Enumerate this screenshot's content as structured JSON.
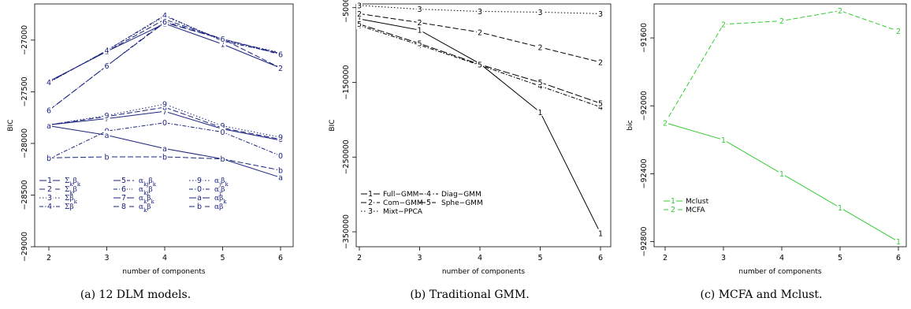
{
  "chart_data": [
    {
      "type": "line",
      "caption": "(a) 12 DLM models.",
      "xlabel": "number of components",
      "ylabel": "BIC",
      "x": [
        2,
        3,
        4,
        5,
        6
      ],
      "ylim": [
        -29000,
        -26650
      ],
      "yticks": [
        -29000,
        -28500,
        -28000,
        -27500,
        -27000
      ],
      "color": "#1a237e",
      "legend_columns": [
        [
          "Σ_kβ_k",
          "Σ_kβ",
          "Σβ_k",
          "Σβ"
        ],
        [
          "α_kjβ_k",
          "α_kjβ",
          "α_kβ_k",
          "α_kβ"
        ],
        [
          "α_jβ_k",
          "α_jβ",
          "αβ_k",
          "αβ"
        ]
      ],
      "series": [
        {
          "name": "Σ_kβ_k",
          "label": "1",
          "values": [
            -27400,
            -27110,
            -26840,
            -27040,
            -27270
          ]
        },
        {
          "name": "Σ_kβ",
          "label": "2",
          "values": [
            -27400,
            -27110,
            -26800,
            -26990,
            -27270
          ]
        },
        {
          "name": "Σβ_k",
          "label": "3",
          "values": [
            -27410,
            -27100,
            -26770,
            -27000,
            -27120
          ]
        },
        {
          "name": "Σβ",
          "label": "4",
          "values": [
            -27410,
            -27100,
            -26760,
            -27010,
            -27130
          ]
        },
        {
          "name": "α_kjβ_k",
          "label": "5",
          "values": [
            -27680,
            -27250,
            -26830,
            -26990,
            -27130
          ]
        },
        {
          "name": "α_kjβ",
          "label": "6",
          "values": [
            -27680,
            -27250,
            -26820,
            -26990,
            -27140
          ]
        },
        {
          "name": "α_kβ_k",
          "label": "7",
          "values": [
            -27820,
            -27760,
            -27690,
            -27860,
            -27970
          ]
        },
        {
          "name": "α_kβ",
          "label": "8",
          "values": [
            -27820,
            -27740,
            -27650,
            -27850,
            -27960
          ]
        },
        {
          "name": "α_jβ_k",
          "label": "9",
          "values": [
            -27820,
            -27730,
            -27620,
            -27830,
            -27940
          ]
        },
        {
          "name": "α_jβ",
          "label": "0",
          "values": [
            -28150,
            -27880,
            -27800,
            -27890,
            -28120
          ]
        },
        {
          "name": "αβ_k",
          "label": "a",
          "values": [
            -27830,
            -27920,
            -28050,
            -28150,
            -28330
          ]
        },
        {
          "name": "αβ",
          "label": "b",
          "values": [
            -28140,
            -28130,
            -28130,
            -28150,
            -28260
          ]
        }
      ]
    },
    {
      "type": "line",
      "caption": "(b) Traditional GMM.",
      "xlabel": "number of components",
      "ylabel": "BIC",
      "x": [
        2,
        3,
        4,
        5,
        6
      ],
      "ylim": [
        -370000,
        -45000
      ],
      "yticks": [
        -350000,
        -250000,
        -150000,
        -50000
      ],
      "color": "#000000",
      "legend": [
        "Full−GMM",
        "Com−GMM",
        "Mixt−PPCA",
        "Diag−GMM",
        "Sphe−GMM"
      ],
      "series": [
        {
          "name": "Full−GMM",
          "label": "1",
          "values": [
            -65000,
            -80000,
            -125000,
            -190000,
            -352000
          ]
        },
        {
          "name": "Com−GMM",
          "label": "2",
          "values": [
            -58000,
            -70000,
            -83000,
            -103000,
            -123000
          ]
        },
        {
          "name": "Mixt−PPCA",
          "label": "3",
          "values": [
            -47000,
            -52000,
            -55000,
            -56000,
            -58000
          ]
        },
        {
          "name": "Diag−GMM",
          "label": "4",
          "values": [
            -74000,
            -100000,
            -127000,
            -155000,
            -183000
          ]
        },
        {
          "name": "Sphe−GMM",
          "label": "5",
          "values": [
            -72000,
            -98000,
            -126000,
            -150000,
            -178000
          ]
        }
      ]
    },
    {
      "type": "line",
      "caption": "(c) MCFA and Mclust.",
      "xlabel": "number of components",
      "ylabel": "bic",
      "x": [
        2,
        3,
        4,
        5,
        6
      ],
      "ylim": [
        -92830,
        -91400
      ],
      "yticks": [
        -92800,
        -92400,
        -92000,
        -91600
      ],
      "legend": [
        "Mclust",
        "MCFA"
      ],
      "series": [
        {
          "name": "Mclust",
          "label": "1",
          "color": "#33cc33",
          "values": [
            -92100,
            -92200,
            -92400,
            -92600,
            -92800
          ]
        },
        {
          "name": "MCFA",
          "label": "2",
          "color": "#33cc33",
          "values": [
            -92100,
            -91520,
            -91500,
            -91440,
            -91560
          ]
        }
      ]
    }
  ]
}
